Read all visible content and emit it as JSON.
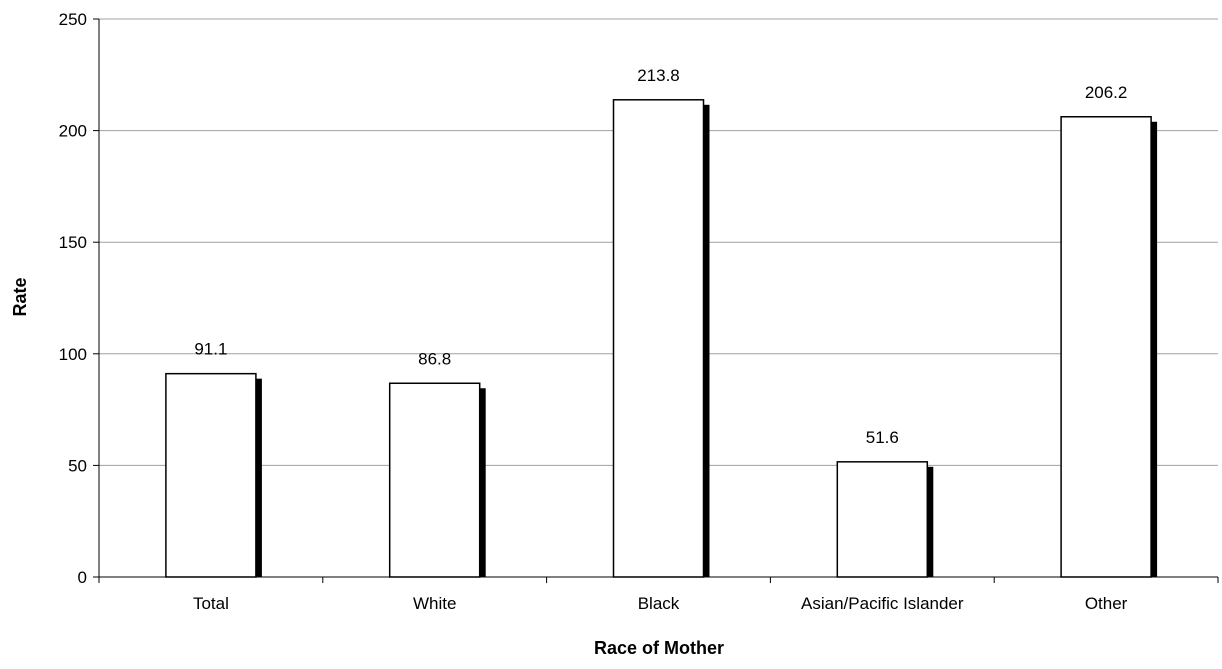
{
  "chart_data": {
    "type": "bar",
    "categories": [
      "Total",
      "White",
      "Black",
      "Asian/Pacific Islander",
      "Other"
    ],
    "values": [
      91.1,
      86.8,
      213.8,
      51.6,
      206.2
    ],
    "data_labels": [
      "91.1",
      "86.8",
      "213.8",
      "51.6",
      "206.2"
    ],
    "xlabel": "Race of Mother",
    "ylabel": "Rate",
    "ylim": [
      0,
      250
    ],
    "yticks": [
      0,
      50,
      100,
      150,
      200,
      250
    ],
    "grid": true,
    "legend": "none",
    "colors": {
      "bar_fill": "#ffffff",
      "bar_stroke": "#000000",
      "bar_shadow": "#000000",
      "grid": "#a0a0a0",
      "axis": "#000000"
    }
  }
}
